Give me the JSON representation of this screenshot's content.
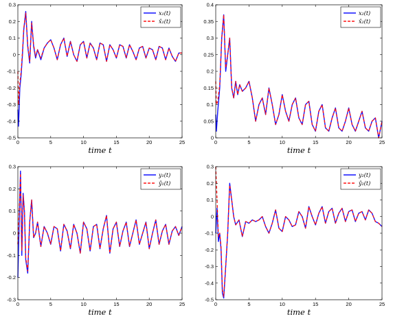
{
  "colors": {
    "estimate": "#ff1010",
    "state": "#1010ff",
    "axis": "#000000",
    "background": "#ffffff"
  },
  "chart_data": [
    {
      "type": "line",
      "xlabel": "time t",
      "xlim": [
        0,
        25
      ],
      "ylim": [
        -0.5,
        0.3
      ],
      "xticks": [
        "0",
        "5",
        "10",
        "15",
        "20",
        "25"
      ],
      "yticks": [
        "-0.5",
        "-0.4",
        "-0.3",
        "-0.2",
        "-0.1",
        "0",
        "0.1",
        "0.2",
        "0.3"
      ],
      "legend": {
        "placement": "top-right",
        "entries": [
          "x₁(t)",
          "x̂₁(t)"
        ]
      },
      "grid": false,
      "series": [
        {
          "name": "x₁(t)",
          "style": "solid",
          "x": [
            0,
            0.1,
            0.3,
            0.5,
            0.7,
            0.9,
            1.2,
            1.5,
            1.8,
            2.1,
            2.4,
            2.7,
            3.0,
            3.5,
            4.0,
            4.5,
            5.0,
            5.5,
            6.0,
            6.5,
            7.0,
            7.5,
            8.0,
            8.5,
            9.0,
            9.5,
            10.0,
            10.5,
            11.0,
            11.5,
            12.0,
            12.5,
            13.0,
            13.5,
            14.0,
            14.5,
            15.0,
            15.5,
            16.0,
            16.5,
            17.0,
            17.5,
            18.0,
            18.5,
            19.0,
            19.5,
            20.0,
            20.5,
            21.0,
            21.5,
            22.0,
            22.5,
            23.0,
            23.5,
            24.0,
            24.5,
            25.0
          ],
          "y": [
            -0.33,
            -0.43,
            -0.2,
            -0.12,
            0.0,
            0.15,
            0.26,
            0.05,
            -0.05,
            0.2,
            0.05,
            -0.02,
            0.03,
            -0.03,
            0.04,
            0.07,
            0.09,
            0.04,
            -0.03,
            0.06,
            0.1,
            -0.01,
            0.08,
            0.0,
            -0.04,
            0.06,
            0.08,
            -0.02,
            0.07,
            0.04,
            -0.03,
            0.07,
            0.06,
            -0.04,
            0.06,
            0.03,
            -0.02,
            0.06,
            0.05,
            -0.02,
            0.06,
            0.02,
            -0.03,
            0.04,
            0.05,
            -0.02,
            0.04,
            0.03,
            -0.03,
            0.05,
            0.04,
            -0.03,
            0.04,
            -0.01,
            -0.04,
            0.01,
            0.01
          ]
        },
        {
          "name": "x̂₁(t)",
          "style": "dashed",
          "x": [
            0,
            0.1,
            0.3,
            0.5,
            0.7,
            0.9,
            1.2,
            1.5,
            1.8,
            2.1,
            2.4,
            2.7,
            3.0,
            3.5,
            4.0,
            4.5,
            5.0,
            5.5,
            6.0,
            6.5,
            7.0,
            7.5,
            8.0,
            8.5,
            9.0,
            9.5,
            10.0,
            10.5,
            11.0,
            11.5,
            12.0,
            12.5,
            13.0,
            13.5,
            14.0,
            14.5,
            15.0,
            15.5,
            16.0,
            16.5,
            17.0,
            17.5,
            18.0,
            18.5,
            19.0,
            19.5,
            20.0,
            20.5,
            21.0,
            21.5,
            22.0,
            22.5,
            23.0,
            23.5,
            24.0,
            24.5,
            25.0
          ],
          "y": [
            -0.1,
            -0.3,
            -0.17,
            -0.1,
            0.02,
            0.16,
            0.25,
            0.06,
            -0.04,
            0.19,
            0.06,
            -0.01,
            0.03,
            -0.02,
            0.04,
            0.07,
            0.09,
            0.04,
            -0.03,
            0.06,
            0.1,
            -0.01,
            0.08,
            0.0,
            -0.04,
            0.06,
            0.08,
            -0.02,
            0.07,
            0.04,
            -0.03,
            0.07,
            0.06,
            -0.04,
            0.06,
            0.03,
            -0.02,
            0.06,
            0.05,
            -0.02,
            0.06,
            0.02,
            -0.03,
            0.04,
            0.05,
            -0.02,
            0.04,
            0.03,
            -0.03,
            0.05,
            0.04,
            -0.03,
            0.04,
            -0.01,
            -0.04,
            0.01,
            0.01
          ]
        }
      ]
    },
    {
      "type": "line",
      "xlabel": "time t",
      "xlim": [
        0,
        25
      ],
      "ylim": [
        0,
        0.4
      ],
      "xticks": [
        "0",
        "5",
        "10",
        "15",
        "20",
        "25"
      ],
      "yticks": [
        "0",
        "0.05",
        "0.1",
        "0.15",
        "0.2",
        "0.25",
        "0.3",
        "0.35",
        "0.4"
      ],
      "legend": {
        "placement": "top-right",
        "entries": [
          "x₂(t)",
          "x̂₂(t)"
        ]
      },
      "grid": false,
      "series": [
        {
          "name": "x₂(t)",
          "style": "solid",
          "x": [
            0,
            0.1,
            0.3,
            0.6,
            0.9,
            1.2,
            1.5,
            1.8,
            2.1,
            2.4,
            2.7,
            3.0,
            3.3,
            3.6,
            4.0,
            4.5,
            5.0,
            5.5,
            6.0,
            6.5,
            7.0,
            7.5,
            8.0,
            8.5,
            9.0,
            9.5,
            10.0,
            10.5,
            11.0,
            11.5,
            12.0,
            12.5,
            13.0,
            13.5,
            14.0,
            14.5,
            15.0,
            15.5,
            16.0,
            16.5,
            17.0,
            17.5,
            18.0,
            18.5,
            19.0,
            19.5,
            20.0,
            20.5,
            21.0,
            21.5,
            22.0,
            22.5,
            23.0,
            23.5,
            24.0,
            24.5,
            25.0
          ],
          "y": [
            0.07,
            0.02,
            0.08,
            0.15,
            0.3,
            0.37,
            0.2,
            0.25,
            0.3,
            0.15,
            0.12,
            0.17,
            0.13,
            0.16,
            0.14,
            0.15,
            0.17,
            0.12,
            0.05,
            0.1,
            0.12,
            0.07,
            0.15,
            0.1,
            0.04,
            0.07,
            0.13,
            0.08,
            0.05,
            0.1,
            0.12,
            0.06,
            0.04,
            0.1,
            0.11,
            0.04,
            0.02,
            0.08,
            0.1,
            0.03,
            0.02,
            0.06,
            0.09,
            0.03,
            0.02,
            0.05,
            0.09,
            0.04,
            0.02,
            0.05,
            0.08,
            0.03,
            0.02,
            0.05,
            0.06,
            0.0,
            0.05
          ]
        },
        {
          "name": "x̂₂(t)",
          "style": "dashed",
          "x": [
            0,
            0.1,
            0.3,
            0.6,
            0.9,
            1.2,
            1.5,
            1.8,
            2.1,
            2.4,
            2.7,
            3.0,
            3.3,
            3.6,
            4.0,
            4.5,
            5.0,
            5.5,
            6.0,
            6.5,
            7.0,
            7.5,
            8.0,
            8.5,
            9.0,
            9.5,
            10.0,
            10.5,
            11.0,
            11.5,
            12.0,
            12.5,
            13.0,
            13.5,
            14.0,
            14.5,
            15.0,
            15.5,
            16.0,
            16.5,
            17.0,
            17.5,
            18.0,
            18.5,
            19.0,
            19.5,
            20.0,
            20.5,
            21.0,
            21.5,
            22.0,
            22.5,
            23.0,
            23.5,
            24.0,
            24.5,
            25.0
          ],
          "y": [
            0.17,
            0.1,
            0.11,
            0.16,
            0.3,
            0.37,
            0.21,
            0.25,
            0.3,
            0.15,
            0.12,
            0.17,
            0.13,
            0.16,
            0.14,
            0.15,
            0.17,
            0.12,
            0.05,
            0.1,
            0.12,
            0.07,
            0.15,
            0.1,
            0.04,
            0.07,
            0.13,
            0.08,
            0.05,
            0.1,
            0.12,
            0.06,
            0.04,
            0.1,
            0.11,
            0.04,
            0.02,
            0.08,
            0.1,
            0.03,
            0.02,
            0.06,
            0.09,
            0.03,
            0.02,
            0.05,
            0.09,
            0.04,
            0.02,
            0.05,
            0.08,
            0.03,
            0.02,
            0.05,
            0.06,
            0.0,
            0.05
          ]
        }
      ]
    },
    {
      "type": "line",
      "xlabel": "time t",
      "xlim": [
        0,
        25
      ],
      "ylim": [
        -0.3,
        0.3
      ],
      "xticks": [
        "0",
        "5",
        "10",
        "15",
        "20",
        "25"
      ],
      "yticks": [
        "-0.3",
        "-0.2",
        "-0.1",
        "0",
        "0.1",
        "0.2",
        "0.3"
      ],
      "legend": {
        "placement": "top-right",
        "entries": [
          "y₁(t)",
          "ŷ₁(t)"
        ]
      },
      "grid": false,
      "series": [
        {
          "name": "y₁(t)",
          "style": "solid",
          "x": [
            0,
            0.2,
            0.4,
            0.6,
            0.8,
            1.0,
            1.2,
            1.5,
            1.8,
            2.1,
            2.4,
            2.7,
            3.0,
            3.5,
            4.0,
            4.5,
            5.0,
            5.5,
            6.0,
            6.5,
            7.0,
            7.5,
            8.0,
            8.5,
            9.0,
            9.5,
            10.0,
            10.5,
            11.0,
            11.5,
            12.0,
            12.5,
            13.0,
            13.5,
            14.0,
            14.5,
            15.0,
            15.5,
            16.0,
            16.5,
            17.0,
            17.5,
            18.0,
            18.5,
            19.0,
            19.5,
            20.0,
            20.5,
            21.0,
            21.5,
            22.0,
            22.5,
            23.0,
            23.5,
            24.0,
            24.5,
            25.0
          ],
          "y": [
            -0.2,
            0.05,
            0.28,
            -0.1,
            0.18,
            0.1,
            -0.12,
            -0.18,
            0.05,
            0.15,
            -0.02,
            0.0,
            0.05,
            -0.06,
            0.03,
            0.0,
            -0.05,
            0.03,
            0.02,
            -0.08,
            0.04,
            0.01,
            -0.07,
            0.04,
            0.0,
            -0.09,
            0.05,
            0.02,
            -0.08,
            0.03,
            0.04,
            -0.07,
            0.02,
            0.08,
            -0.09,
            0.02,
            0.05,
            -0.06,
            0.01,
            0.05,
            -0.06,
            0.0,
            0.06,
            -0.05,
            0.0,
            0.05,
            -0.07,
            0.0,
            0.06,
            -0.05,
            0.01,
            0.04,
            -0.05,
            0.01,
            0.03,
            -0.01,
            0.03
          ]
        },
        {
          "name": "ŷ₁(t)",
          "style": "dashed",
          "x": [
            0,
            0.2,
            0.4,
            0.6,
            0.8,
            1.0,
            1.2,
            1.5,
            1.8,
            2.1,
            2.4,
            2.7,
            3.0,
            3.5,
            4.0,
            4.5,
            5.0,
            5.5,
            6.0,
            6.5,
            7.0,
            7.5,
            8.0,
            8.5,
            9.0,
            9.5,
            10.0,
            10.5,
            11.0,
            11.5,
            12.0,
            12.5,
            13.0,
            13.5,
            14.0,
            14.5,
            15.0,
            15.5,
            16.0,
            16.5,
            17.0,
            17.5,
            18.0,
            18.5,
            19.0,
            19.5,
            20.0,
            20.5,
            21.0,
            21.5,
            22.0,
            22.5,
            23.0,
            23.5,
            24.0,
            24.5,
            25.0
          ],
          "y": [
            -0.05,
            0.1,
            0.27,
            -0.08,
            0.17,
            0.1,
            -0.11,
            -0.17,
            0.05,
            0.15,
            -0.02,
            0.0,
            0.05,
            -0.06,
            0.03,
            0.0,
            -0.05,
            0.03,
            0.02,
            -0.08,
            0.04,
            0.01,
            -0.07,
            0.04,
            0.0,
            -0.09,
            0.05,
            0.02,
            -0.08,
            0.03,
            0.04,
            -0.07,
            0.02,
            0.08,
            -0.09,
            0.02,
            0.05,
            -0.06,
            0.01,
            0.05,
            -0.06,
            0.0,
            0.06,
            -0.05,
            0.0,
            0.05,
            -0.07,
            0.0,
            0.06,
            -0.05,
            0.01,
            0.04,
            -0.05,
            0.01,
            0.03,
            -0.01,
            0.03
          ]
        }
      ]
    },
    {
      "type": "line",
      "xlabel": "time t",
      "xlim": [
        0,
        25
      ],
      "ylim": [
        -0.5,
        0.3
      ],
      "xticks": [
        "0",
        "5",
        "10",
        "15",
        "20",
        "25"
      ],
      "yticks": [
        "-0.5",
        "-0.4",
        "-0.3",
        "-0.2",
        "-0.1",
        "0",
        "0.1",
        "0.2",
        "0.3"
      ],
      "legend": {
        "placement": "top-right",
        "entries": [
          "y₂(t)",
          "ŷ₂(t)"
        ]
      },
      "grid": false,
      "series": [
        {
          "name": "y₂(t)",
          "style": "solid",
          "x": [
            0,
            0.2,
            0.4,
            0.6,
            0.8,
            1.0,
            1.2,
            1.5,
            1.8,
            2.1,
            2.4,
            2.7,
            3.0,
            3.5,
            4.0,
            4.5,
            5.0,
            5.5,
            6.0,
            6.5,
            7.0,
            7.5,
            8.0,
            8.5,
            9.0,
            9.5,
            10.0,
            10.5,
            11.0,
            11.5,
            12.0,
            12.5,
            13.0,
            13.5,
            14.0,
            14.5,
            15.0,
            15.5,
            16.0,
            16.5,
            17.0,
            17.5,
            18.0,
            18.5,
            19.0,
            19.5,
            20.0,
            20.5,
            21.0,
            21.5,
            22.0,
            22.5,
            23.0,
            23.5,
            24.0,
            24.5,
            25.0
          ],
          "y": [
            -0.1,
            0.05,
            -0.15,
            -0.1,
            -0.2,
            -0.46,
            -0.49,
            -0.3,
            -0.1,
            0.2,
            0.1,
            0.0,
            -0.05,
            -0.02,
            -0.12,
            -0.03,
            -0.04,
            -0.02,
            -0.03,
            -0.02,
            0.0,
            -0.06,
            -0.1,
            -0.04,
            0.04,
            -0.07,
            -0.09,
            0.0,
            -0.02,
            -0.06,
            -0.05,
            0.03,
            0.0,
            -0.07,
            0.06,
            0.0,
            -0.05,
            0.02,
            0.06,
            -0.04,
            0.03,
            0.05,
            -0.04,
            0.02,
            0.05,
            -0.03,
            0.03,
            0.04,
            -0.03,
            0.02,
            0.03,
            -0.02,
            0.04,
            0.02,
            -0.03,
            -0.04,
            -0.06
          ]
        },
        {
          "name": "ŷ₂(t)",
          "style": "dashed",
          "x": [
            0,
            0.2,
            0.4,
            0.6,
            0.8,
            1.0,
            1.2,
            1.5,
            1.8,
            2.1,
            2.4,
            2.7,
            3.0,
            3.5,
            4.0,
            4.5,
            5.0,
            5.5,
            6.0,
            6.5,
            7.0,
            7.5,
            8.0,
            8.5,
            9.0,
            9.5,
            10.0,
            10.5,
            11.0,
            11.5,
            12.0,
            12.5,
            13.0,
            13.5,
            14.0,
            14.5,
            15.0,
            15.5,
            16.0,
            16.5,
            17.0,
            17.5,
            18.0,
            18.5,
            19.0,
            19.5,
            20.0,
            20.5,
            21.0,
            21.5,
            22.0,
            22.5,
            23.0,
            23.5,
            24.0,
            24.5,
            25.0
          ],
          "y": [
            0.3,
            0.1,
            -0.12,
            -0.1,
            -0.18,
            -0.44,
            -0.48,
            -0.3,
            -0.1,
            0.19,
            0.1,
            0.0,
            -0.05,
            -0.02,
            -0.12,
            -0.03,
            -0.04,
            -0.02,
            -0.03,
            -0.02,
            0.0,
            -0.06,
            -0.1,
            -0.04,
            0.04,
            -0.07,
            -0.09,
            0.0,
            -0.02,
            -0.06,
            -0.05,
            0.03,
            0.0,
            -0.07,
            0.06,
            0.0,
            -0.05,
            0.02,
            0.06,
            -0.04,
            0.03,
            0.05,
            -0.04,
            0.02,
            0.05,
            -0.03,
            0.03,
            0.04,
            -0.03,
            0.02,
            0.03,
            -0.02,
            0.04,
            0.02,
            -0.03,
            -0.04,
            -0.06
          ]
        }
      ]
    }
  ]
}
